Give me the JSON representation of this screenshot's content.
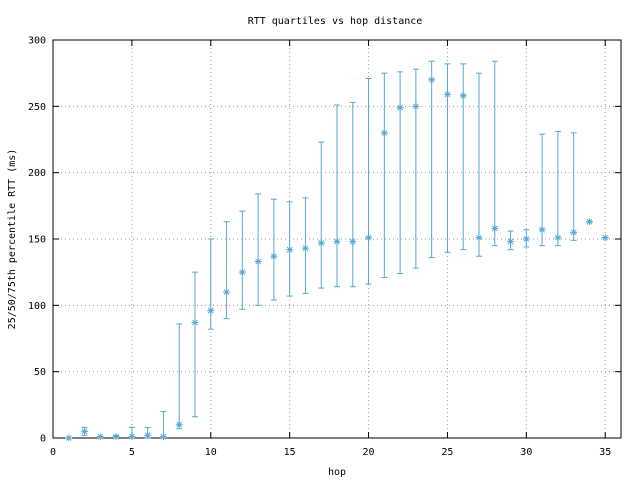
{
  "chart_data": {
    "type": "scatter",
    "title": "RTT quartiles vs hop distance",
    "xlabel": "hop",
    "ylabel": "25/50/75th percentile RTT (ms)",
    "xlim": [
      0,
      36
    ],
    "ylim": [
      0,
      300
    ],
    "x_ticks": [
      0,
      5,
      10,
      15,
      20,
      25,
      30,
      35
    ],
    "y_ticks": [
      0,
      50,
      100,
      150,
      200,
      250,
      300
    ],
    "grid": true,
    "legend": "none",
    "marker": "asterisk",
    "series": [
      {
        "color": "#56a7d4",
        "points": [
          {
            "x": 1,
            "q25": 0,
            "median": 0,
            "q75": 0
          },
          {
            "x": 2,
            "q25": 2,
            "median": 5,
            "q75": 8
          },
          {
            "x": 3,
            "q25": 0,
            "median": 1,
            "q75": 1
          },
          {
            "x": 4,
            "q25": 0,
            "median": 1,
            "q75": 2
          },
          {
            "x": 5,
            "q25": 0,
            "median": 1,
            "q75": 8
          },
          {
            "x": 6,
            "q25": 0,
            "median": 2,
            "q75": 8
          },
          {
            "x": 7,
            "q25": 0,
            "median": 1,
            "q75": 20
          },
          {
            "x": 8,
            "q25": 7,
            "median": 10,
            "q75": 86
          },
          {
            "x": 9,
            "q25": 16,
            "median": 87,
            "q75": 125
          },
          {
            "x": 10,
            "q25": 82,
            "median": 96,
            "q75": 150
          },
          {
            "x": 11,
            "q25": 90,
            "median": 110,
            "q75": 163
          },
          {
            "x": 12,
            "q25": 97,
            "median": 125,
            "q75": 171
          },
          {
            "x": 13,
            "q25": 100,
            "median": 133,
            "q75": 184
          },
          {
            "x": 14,
            "q25": 104,
            "median": 137,
            "q75": 180
          },
          {
            "x": 15,
            "q25": 107,
            "median": 142,
            "q75": 178
          },
          {
            "x": 16,
            "q25": 109,
            "median": 143,
            "q75": 181
          },
          {
            "x": 17,
            "q25": 113,
            "median": 147,
            "q75": 223
          },
          {
            "x": 18,
            "q25": 114,
            "median": 148,
            "q75": 251
          },
          {
            "x": 19,
            "q25": 114,
            "median": 148,
            "q75": 253
          },
          {
            "x": 20,
            "q25": 116,
            "median": 151,
            "q75": 271
          },
          {
            "x": 21,
            "q25": 121,
            "median": 230,
            "q75": 275
          },
          {
            "x": 22,
            "q25": 124,
            "median": 249,
            "q75": 276
          },
          {
            "x": 23,
            "q25": 128,
            "median": 250,
            "q75": 278
          },
          {
            "x": 24,
            "q25": 136,
            "median": 270,
            "q75": 284
          },
          {
            "x": 25,
            "q25": 140,
            "median": 259,
            "q75": 282
          },
          {
            "x": 26,
            "q25": 142,
            "median": 258,
            "q75": 282
          },
          {
            "x": 27,
            "q25": 137,
            "median": 151,
            "q75": 275
          },
          {
            "x": 28,
            "q25": 145,
            "median": 158,
            "q75": 284
          },
          {
            "x": 29,
            "q25": 142,
            "median": 148,
            "q75": 156
          },
          {
            "x": 30,
            "q25": 144,
            "median": 150,
            "q75": 157
          },
          {
            "x": 31,
            "q25": 145,
            "median": 157,
            "q75": 229
          },
          {
            "x": 32,
            "q25": 145,
            "median": 151,
            "q75": 231
          },
          {
            "x": 33,
            "q25": 149,
            "median": 155,
            "q75": 230
          },
          {
            "x": 34,
            "q25": 163,
            "median": 163,
            "q75": 163
          },
          {
            "x": 35,
            "q25": 151,
            "median": 151,
            "q75": 151
          }
        ]
      }
    ]
  }
}
